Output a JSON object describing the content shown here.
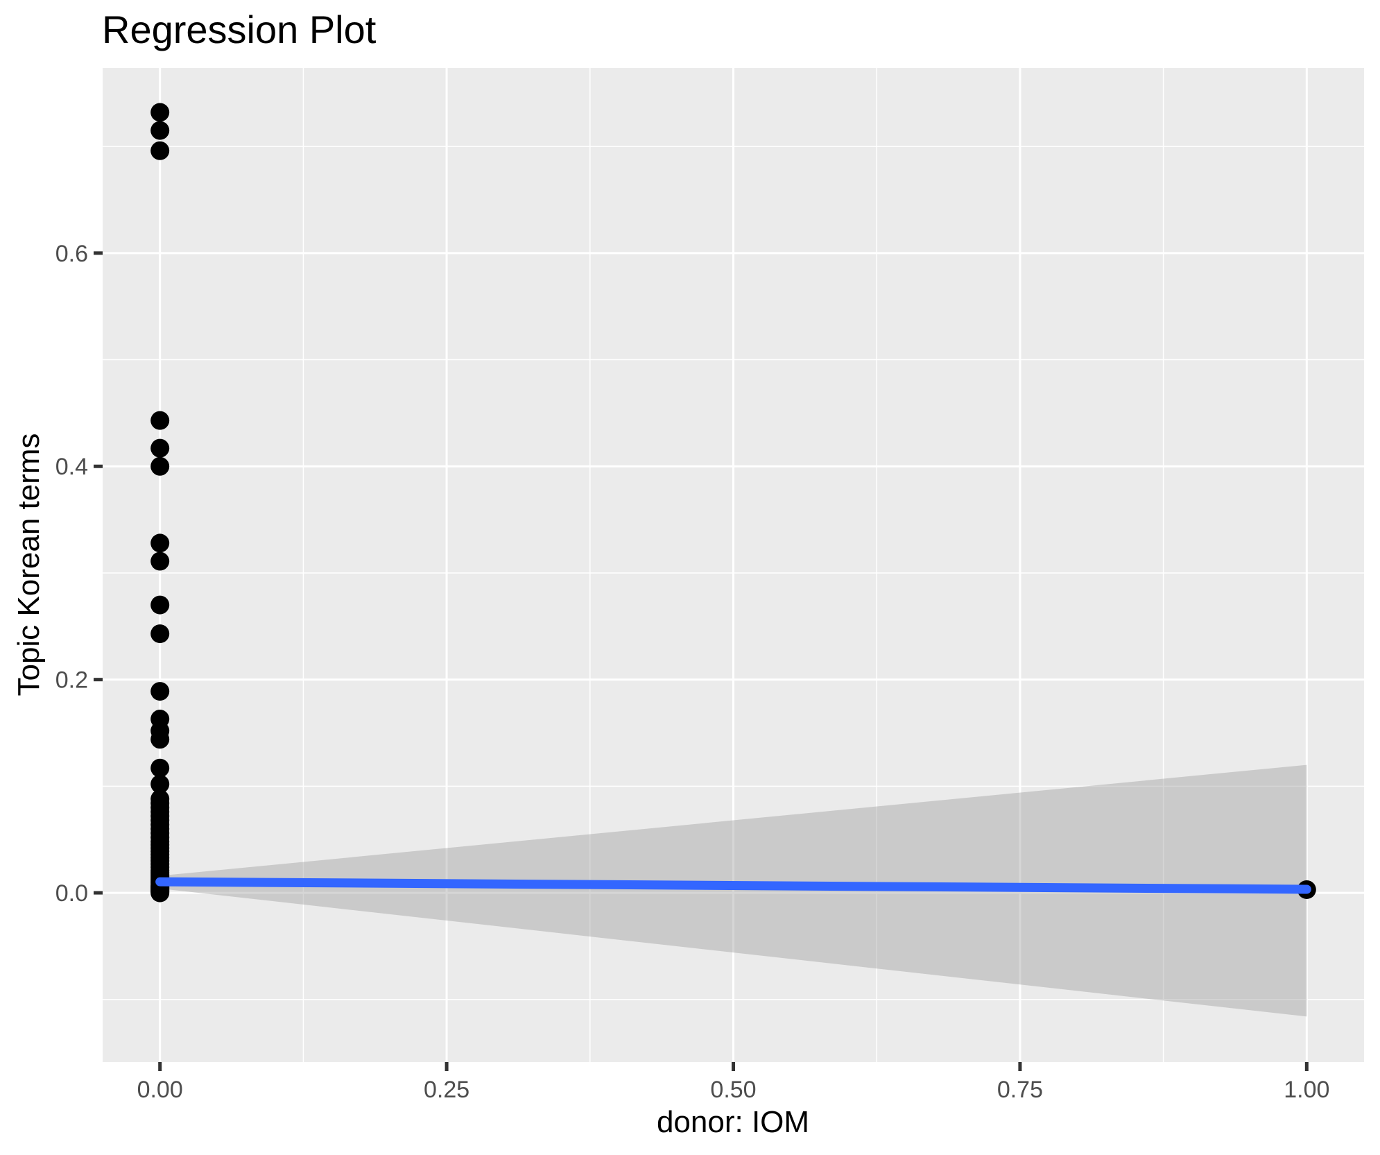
{
  "chart_data": {
    "type": "scatter",
    "title": "Regression Plot",
    "xlabel": "donor: IOM",
    "ylabel": "Topic Korean terms",
    "legend": "none",
    "grid": true,
    "x_axis": {
      "range": [
        -0.05,
        1.05
      ],
      "ticks": [
        {
          "value": 0.0,
          "label": "0.00"
        },
        {
          "value": 0.25,
          "label": "0.25"
        },
        {
          "value": 0.5,
          "label": "0.50"
        },
        {
          "value": 0.75,
          "label": "0.75"
        },
        {
          "value": 1.0,
          "label": "1.00"
        }
      ],
      "minor_ticks": [
        0.125,
        0.375,
        0.625,
        0.875
      ]
    },
    "y_axis": {
      "range": [
        -0.1587,
        0.7736
      ],
      "ticks": [
        {
          "value": 0.0,
          "label": "0.0"
        },
        {
          "value": 0.2,
          "label": "0.2"
        },
        {
          "value": 0.4,
          "label": "0.4"
        },
        {
          "value": 0.6,
          "label": "0.6"
        }
      ],
      "minor_ticks": [
        -0.1,
        0.1,
        0.3,
        0.5,
        0.7
      ]
    },
    "scatter": [
      {
        "x": 0,
        "y": [
          0.732,
          0.715,
          0.696,
          0.443,
          0.417,
          0.4,
          0.328,
          0.311,
          0.27,
          0.243,
          0.189,
          0.163,
          0.152,
          0.144,
          0.117,
          0.102,
          0.088,
          0.084,
          0.08,
          0.076,
          0.072,
          0.068,
          0.064,
          0.06,
          0.056,
          0.052,
          0.048,
          0.045,
          0.042,
          0.039,
          0.036,
          0.033,
          0.03,
          0.027,
          0.024,
          0.021,
          0.019,
          0.017,
          0.015,
          0.013,
          0.011,
          0.009,
          0.007,
          0.006,
          0.005,
          0.004,
          0.003,
          0.002,
          0.001,
          0.0
        ]
      },
      {
        "x": 1,
        "y": [
          0.003
        ]
      }
    ],
    "regression_line": {
      "x": [
        0,
        1
      ],
      "y": [
        0.0104,
        0.0033
      ]
    },
    "confidence_band": {
      "x": [
        0,
        1
      ],
      "upper": [
        0.016,
        0.12
      ],
      "lower": [
        0.004,
        -0.116
      ]
    },
    "colors": {
      "point": "#000000",
      "line": "#3366FF",
      "band": "#999999",
      "band_opacity": 0.4,
      "panel_background": "#EBEBEB",
      "gridline": "#FFFFFF",
      "tick_label": "#4D4D4D",
      "tick_mark": "#333333",
      "text": "#000000"
    }
  }
}
